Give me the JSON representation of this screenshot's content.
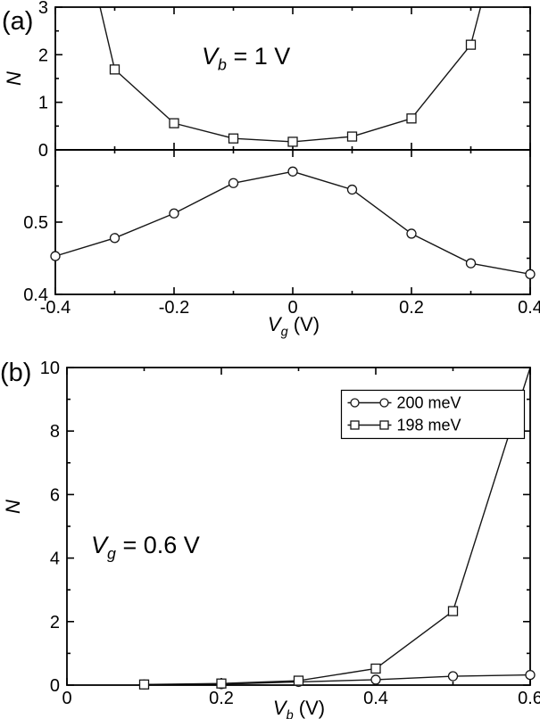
{
  "panels": {
    "a": {
      "label": "(a)"
    },
    "b": {
      "label": "(b)"
    }
  },
  "annotations": {
    "panel_a": {
      "var": "V",
      "sub": "b",
      "rest": " = 1 V"
    },
    "panel_b": {
      "var": "V",
      "sub": "g",
      "rest": " = 0.6 V"
    }
  },
  "axis_labels": {
    "panel_a_y": "N",
    "panel_b_y": "N",
    "panel_a_x": {
      "var": "V",
      "sub": "g",
      "rest": " (V)"
    },
    "panel_b_x": {
      "var": "V",
      "sub": "b",
      "rest": " (V)"
    }
  },
  "chart_data": [
    {
      "id": "panel-a-top",
      "type": "line",
      "xlim": [
        -0.4,
        0.4
      ],
      "ylim": [
        0,
        3
      ],
      "yticks": [
        0,
        1,
        2,
        3
      ],
      "ytick_labels": [
        "0",
        "1",
        "2",
        "3"
      ],
      "yticks_minor": [
        0.5,
        1.5,
        2.5
      ],
      "xticks": [
        -0.4,
        -0.2,
        0,
        0.2,
        0.4
      ],
      "xticks_minor": [
        -0.3,
        -0.1,
        0.1,
        0.3
      ],
      "series": [
        {
          "name": "Vb = 1 V",
          "marker": "square",
          "x": [
            -0.4,
            -0.3,
            -0.2,
            -0.1,
            0,
            0.1,
            0.2,
            0.3,
            0.4
          ],
          "y": [
            7,
            1.69,
            0.56,
            0.24,
            0.17,
            0.28,
            0.66,
            2.21,
            7
          ]
        }
      ]
    },
    {
      "id": "panel-a-bottom",
      "type": "line",
      "xlim": [
        -0.4,
        0.4
      ],
      "ylim": [
        0.4,
        0.6
      ],
      "yticks": [
        0.4,
        0.5
      ],
      "ytick_labels": [
        "0.4",
        "0.5"
      ],
      "yticks_minor": [
        0.45,
        0.55
      ],
      "xticks": [
        -0.4,
        -0.2,
        0,
        0.2,
        0.4
      ],
      "xtick_labels": [
        "-0.4",
        "-0.2",
        "0",
        "0.2",
        "0.4"
      ],
      "xticks_minor": [
        -0.3,
        -0.1,
        0.1,
        0.3
      ],
      "series": [
        {
          "name": "",
          "marker": "circle",
          "x": [
            -0.4,
            -0.3,
            -0.2,
            -0.1,
            0,
            0.1,
            0.2,
            0.3,
            0.4
          ],
          "y": [
            0.453,
            0.478,
            0.512,
            0.554,
            0.57,
            0.545,
            0.484,
            0.443,
            0.428
          ]
        }
      ]
    },
    {
      "id": "panel-b",
      "type": "line",
      "xlim": [
        0,
        0.6
      ],
      "ylim": [
        0,
        10
      ],
      "yticks": [
        0,
        2,
        4,
        6,
        8,
        10
      ],
      "ytick_labels": [
        "0",
        "2",
        "4",
        "6",
        "8",
        "10"
      ],
      "yticks_minor": [
        1,
        3,
        5,
        7,
        9
      ],
      "xticks": [
        0,
        0.2,
        0.4,
        0.6
      ],
      "xtick_labels": [
        "0",
        "0.2",
        "0.4",
        "0.6"
      ],
      "xticks_minor": [
        0.1,
        0.3,
        0.5
      ],
      "legend": {
        "position": "top-right",
        "entries": [
          "200 meV",
          "198 meV"
        ]
      },
      "series": [
        {
          "name": "200 meV",
          "marker": "circle",
          "x": [
            0.1,
            0.2,
            0.3,
            0.4,
            0.5,
            0.6
          ],
          "y": [
            0.02,
            0.03,
            0.1,
            0.17,
            0.28,
            0.32
          ]
        },
        {
          "name": "198 meV",
          "marker": "square",
          "x": [
            0.1,
            0.2,
            0.3,
            0.4,
            0.5,
            0.6
          ],
          "y": [
            0.02,
            0.05,
            0.14,
            0.52,
            2.33,
            10
          ]
        }
      ]
    }
  ]
}
